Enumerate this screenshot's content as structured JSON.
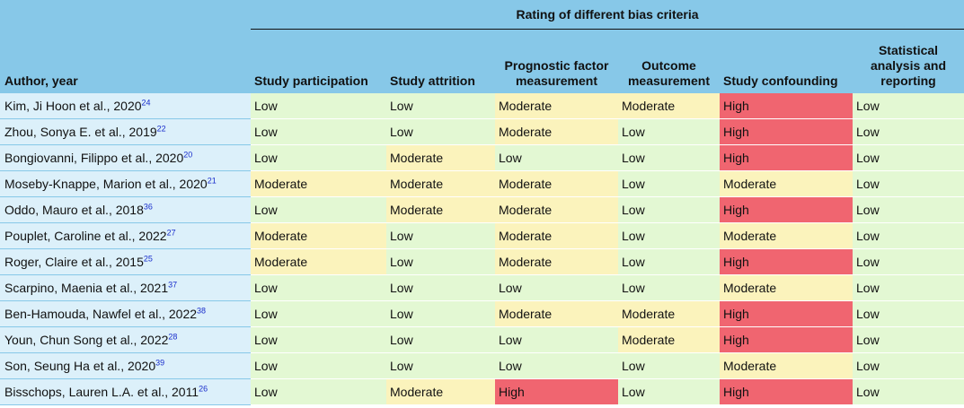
{
  "header": {
    "group_title": "Rating of different bias criteria",
    "author_col": "Author, year",
    "columns": [
      "Study participation",
      "Study attrition",
      "Prognostic factor measurement",
      "Outcome measurement",
      "Study confounding",
      "Statistical analysis and reporting"
    ]
  },
  "colors": {
    "low": "#e3f8d3",
    "moderate": "#fbf3bc",
    "high": "#f06570",
    "header": "#87c8e8",
    "author_cell": "#dcf0fa"
  },
  "rows": [
    {
      "author": "Kim, Ji Hoon et al., 2020",
      "ref": "24",
      "ratings": [
        "Low",
        "Low",
        "Moderate",
        "Moderate",
        "High",
        "Low"
      ]
    },
    {
      "author": "Zhou, Sonya E. et al., 2019",
      "ref": "22",
      "ratings": [
        "Low",
        "Low",
        "Moderate",
        "Low",
        "High",
        "Low"
      ]
    },
    {
      "author": "Bongiovanni, Filippo et al., 2020",
      "ref": "20",
      "ratings": [
        "Low",
        "Moderate",
        "Low",
        "Low",
        "High",
        "Low"
      ]
    },
    {
      "author": "Moseby-Knappe, Marion et al., 2020",
      "ref": "21",
      "ratings": [
        "Moderate",
        "Moderate",
        "Moderate",
        "Low",
        "Moderate",
        "Low"
      ]
    },
    {
      "author": "Oddo, Mauro et al., 2018",
      "ref": "36",
      "ratings": [
        "Low",
        "Moderate",
        "Moderate",
        "Low",
        "High",
        "Low"
      ]
    },
    {
      "author": "Pouplet, Caroline et al., 2022",
      "ref": "27",
      "ratings": [
        "Moderate",
        "Low",
        "Moderate",
        "Low",
        "Moderate",
        "Low"
      ]
    },
    {
      "author": "Roger, Claire et al., 2015",
      "ref": "25",
      "ratings": [
        "Moderate",
        "Low",
        "Moderate",
        "Low",
        "High",
        "Low"
      ]
    },
    {
      "author": "Scarpino, Maenia et al., 2021",
      "ref": "37",
      "ratings": [
        "Low",
        "Low",
        "Low",
        "Low",
        "Moderate",
        "Low"
      ]
    },
    {
      "author": "Ben-Hamouda, Nawfel et al., 2022",
      "ref": "38",
      "ratings": [
        "Low",
        "Low",
        "Moderate",
        "Moderate",
        "High",
        "Low"
      ]
    },
    {
      "author": "Youn, Chun Song et al., 2022",
      "ref": "28",
      "ratings": [
        "Low",
        "Low",
        "Low",
        "Moderate",
        "High",
        "Low"
      ]
    },
    {
      "author": "Son, Seung Ha et al., 2020",
      "ref": "39",
      "ratings": [
        "Low",
        "Low",
        "Low",
        "Low",
        "Moderate",
        "Low"
      ]
    },
    {
      "author": "Bisschops, Lauren L.A. et al., 2011",
      "ref": "26",
      "ratings": [
        "Low",
        "Moderate",
        "High",
        "Low",
        "High",
        "Low"
      ]
    }
  ]
}
